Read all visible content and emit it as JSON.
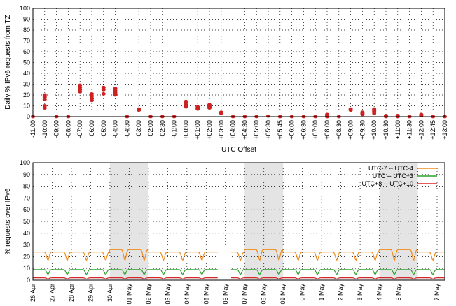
{
  "chart_data": [
    {
      "type": "scatter",
      "title": "",
      "xlabel": "UTC Offset",
      "ylabel": "Daily % IPv6 requests from TZ",
      "ylim": [
        0,
        100
      ],
      "yticks": [
        0,
        10,
        20,
        30,
        40,
        50,
        60,
        70,
        80,
        90,
        100
      ],
      "grid": true,
      "color": "#cc2222",
      "categories": [
        "-11:00",
        "-10:00",
        "-09:00",
        "-08:00",
        "-07:00",
        "-06:00",
        "-05:00",
        "-04:00",
        "-04:30",
        "-03:00",
        "-02:00",
        "-02:30",
        "-01:00",
        "+00:00",
        "+01:00",
        "+02:00",
        "+03:00",
        "+04:00",
        "+04:30",
        "+05:00",
        "+05:30",
        "+05:45",
        "+06:00",
        "+06:30",
        "+07:00",
        "+08:00",
        "+08:30",
        "+09:00",
        "+09:30",
        "+10:00",
        "+10:30",
        "+11:00",
        "+11:30",
        "+12:00",
        "+12:45",
        "+13:00"
      ],
      "points": [
        [
          0
        ],
        [
          8,
          10,
          16,
          18,
          20
        ],
        [
          0
        ],
        [
          0
        ],
        [
          23,
          25,
          27,
          29
        ],
        [
          15,
          17,
          19,
          21
        ],
        [
          21,
          25,
          27
        ],
        [
          20,
          22,
          24,
          26
        ],
        [
          0
        ],
        [
          6,
          7
        ],
        [
          0
        ],
        [
          0
        ],
        [
          0
        ],
        [
          9,
          11,
          13,
          14
        ],
        [
          7,
          8,
          9
        ],
        [
          8,
          9,
          10,
          11
        ],
        [
          3,
          4
        ],
        [
          0
        ],
        [
          0
        ],
        [
          0
        ],
        [
          0.5
        ],
        [
          0
        ],
        [
          0
        ],
        [
          0
        ],
        [
          0
        ],
        [
          0,
          1,
          2
        ],
        [
          0
        ],
        [
          6,
          7
        ],
        [
          2,
          3,
          4
        ],
        [
          3,
          5,
          6,
          7
        ],
        [
          0,
          1
        ],
        [
          0,
          1
        ],
        [
          0
        ],
        [
          1,
          2
        ],
        [
          0
        ],
        [
          0
        ]
      ]
    },
    {
      "type": "line",
      "title": "",
      "xlabel": "",
      "ylabel": "% requests over IPv6",
      "ylim": [
        0,
        100
      ],
      "yticks": [
        0,
        10,
        20,
        30,
        40,
        50,
        60,
        70,
        80,
        90,
        100
      ],
      "grid": true,
      "categories": [
        "26 Apr",
        "27 Apr",
        "28 Apr",
        "29 Apr",
        "30 Apr",
        "01 May",
        "02 May",
        "03 May",
        "04 May",
        "05 May",
        "06 May",
        "07 May",
        "08 May",
        "09 May",
        "10 May",
        "11 May",
        "12 May",
        "13 May",
        "14 May",
        "15 May",
        "16 May",
        "17 May"
      ],
      "x_labels_shown": [
        "26 Apr",
        "27 Apr",
        "28 Apr",
        "29 Apr",
        "30 Apr",
        "01 May",
        "02 May",
        "03 May",
        "04 May",
        "05 May",
        "06 May",
        "07 May",
        "08 May",
        "09 May",
        "0 May",
        "1 May",
        "2 May",
        "3 May",
        "4 May",
        "5 May",
        "",
        "7 May"
      ],
      "shaded_ranges": [
        [
          4,
          6
        ],
        [
          11,
          13
        ],
        [
          18,
          20
        ]
      ],
      "gap_range": [
        9.6,
        10.3
      ],
      "legend_position": "top-right",
      "series": [
        {
          "name": "UTC-7 -- UTC-4",
          "color": "#f08a1c",
          "daily_values": [
            24,
            24,
            24,
            24,
            26,
            26,
            24,
            24,
            24,
            24,
            24,
            26,
            26,
            24,
            24,
            24,
            24,
            24,
            26,
            26,
            24,
            24
          ],
          "daily_low": 17
        },
        {
          "name": "UTC -- UTC+3",
          "color": "#2ca02c",
          "daily_values": [
            9,
            9,
            9,
            9,
            9,
            9,
            9,
            9,
            9,
            9,
            9,
            9,
            9,
            9,
            9,
            9,
            9,
            9,
            9,
            9,
            9,
            9
          ],
          "daily_low": 5
        },
        {
          "name": "UTC+8 -- UTC+10",
          "color": "#d62728",
          "daily_values": [
            2,
            2,
            2,
            2,
            2,
            2,
            2,
            2,
            2,
            2,
            2,
            2,
            2,
            2,
            2,
            2,
            2,
            2,
            2,
            2,
            2,
            2
          ],
          "daily_low": 1
        }
      ]
    }
  ]
}
